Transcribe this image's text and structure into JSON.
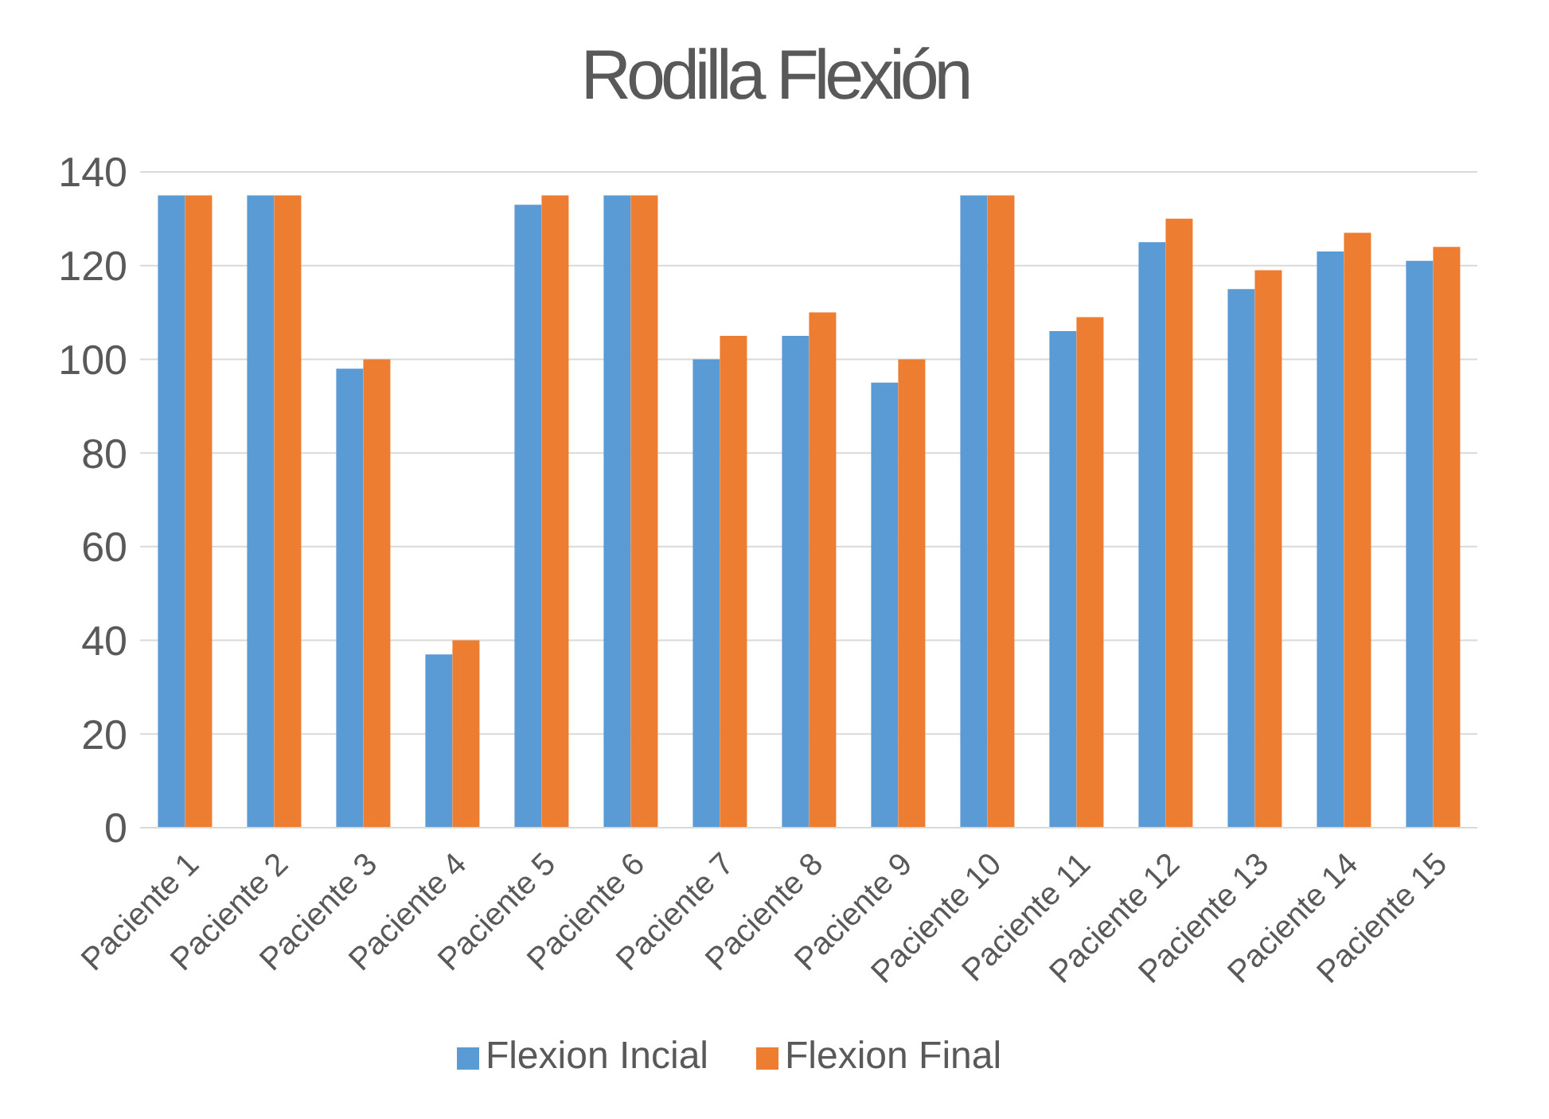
{
  "chart_data": {
    "type": "bar",
    "title": "Rodilla Flexión",
    "categories": [
      "Paciente 1",
      "Paciente 2",
      "Paciente 3",
      "Paciente 4",
      "Paciente 5",
      "Paciente 6",
      "Paciente 7",
      "Paciente 8",
      "Paciente 9",
      "Paciente 10",
      "Paciente 11",
      "Paciente 12",
      "Paciente 13",
      "Paciente 14",
      "Paciente 15"
    ],
    "series": [
      {
        "name": "Flexion Incial",
        "color": "#5b9bd5",
        "values": [
          135,
          135,
          98,
          37,
          133,
          135,
          100,
          105,
          95,
          135,
          106,
          125,
          115,
          123,
          121
        ]
      },
      {
        "name": "Flexion Final",
        "color": "#ed7d31",
        "values": [
          135,
          135,
          100,
          40,
          135,
          135,
          105,
          110,
          100,
          135,
          109,
          130,
          119,
          127,
          124
        ]
      }
    ],
    "ylim": [
      0,
      140
    ],
    "yticks": [
      0,
      20,
      40,
      60,
      80,
      100,
      120,
      140
    ],
    "grid": "y",
    "legend": "bottom"
  }
}
